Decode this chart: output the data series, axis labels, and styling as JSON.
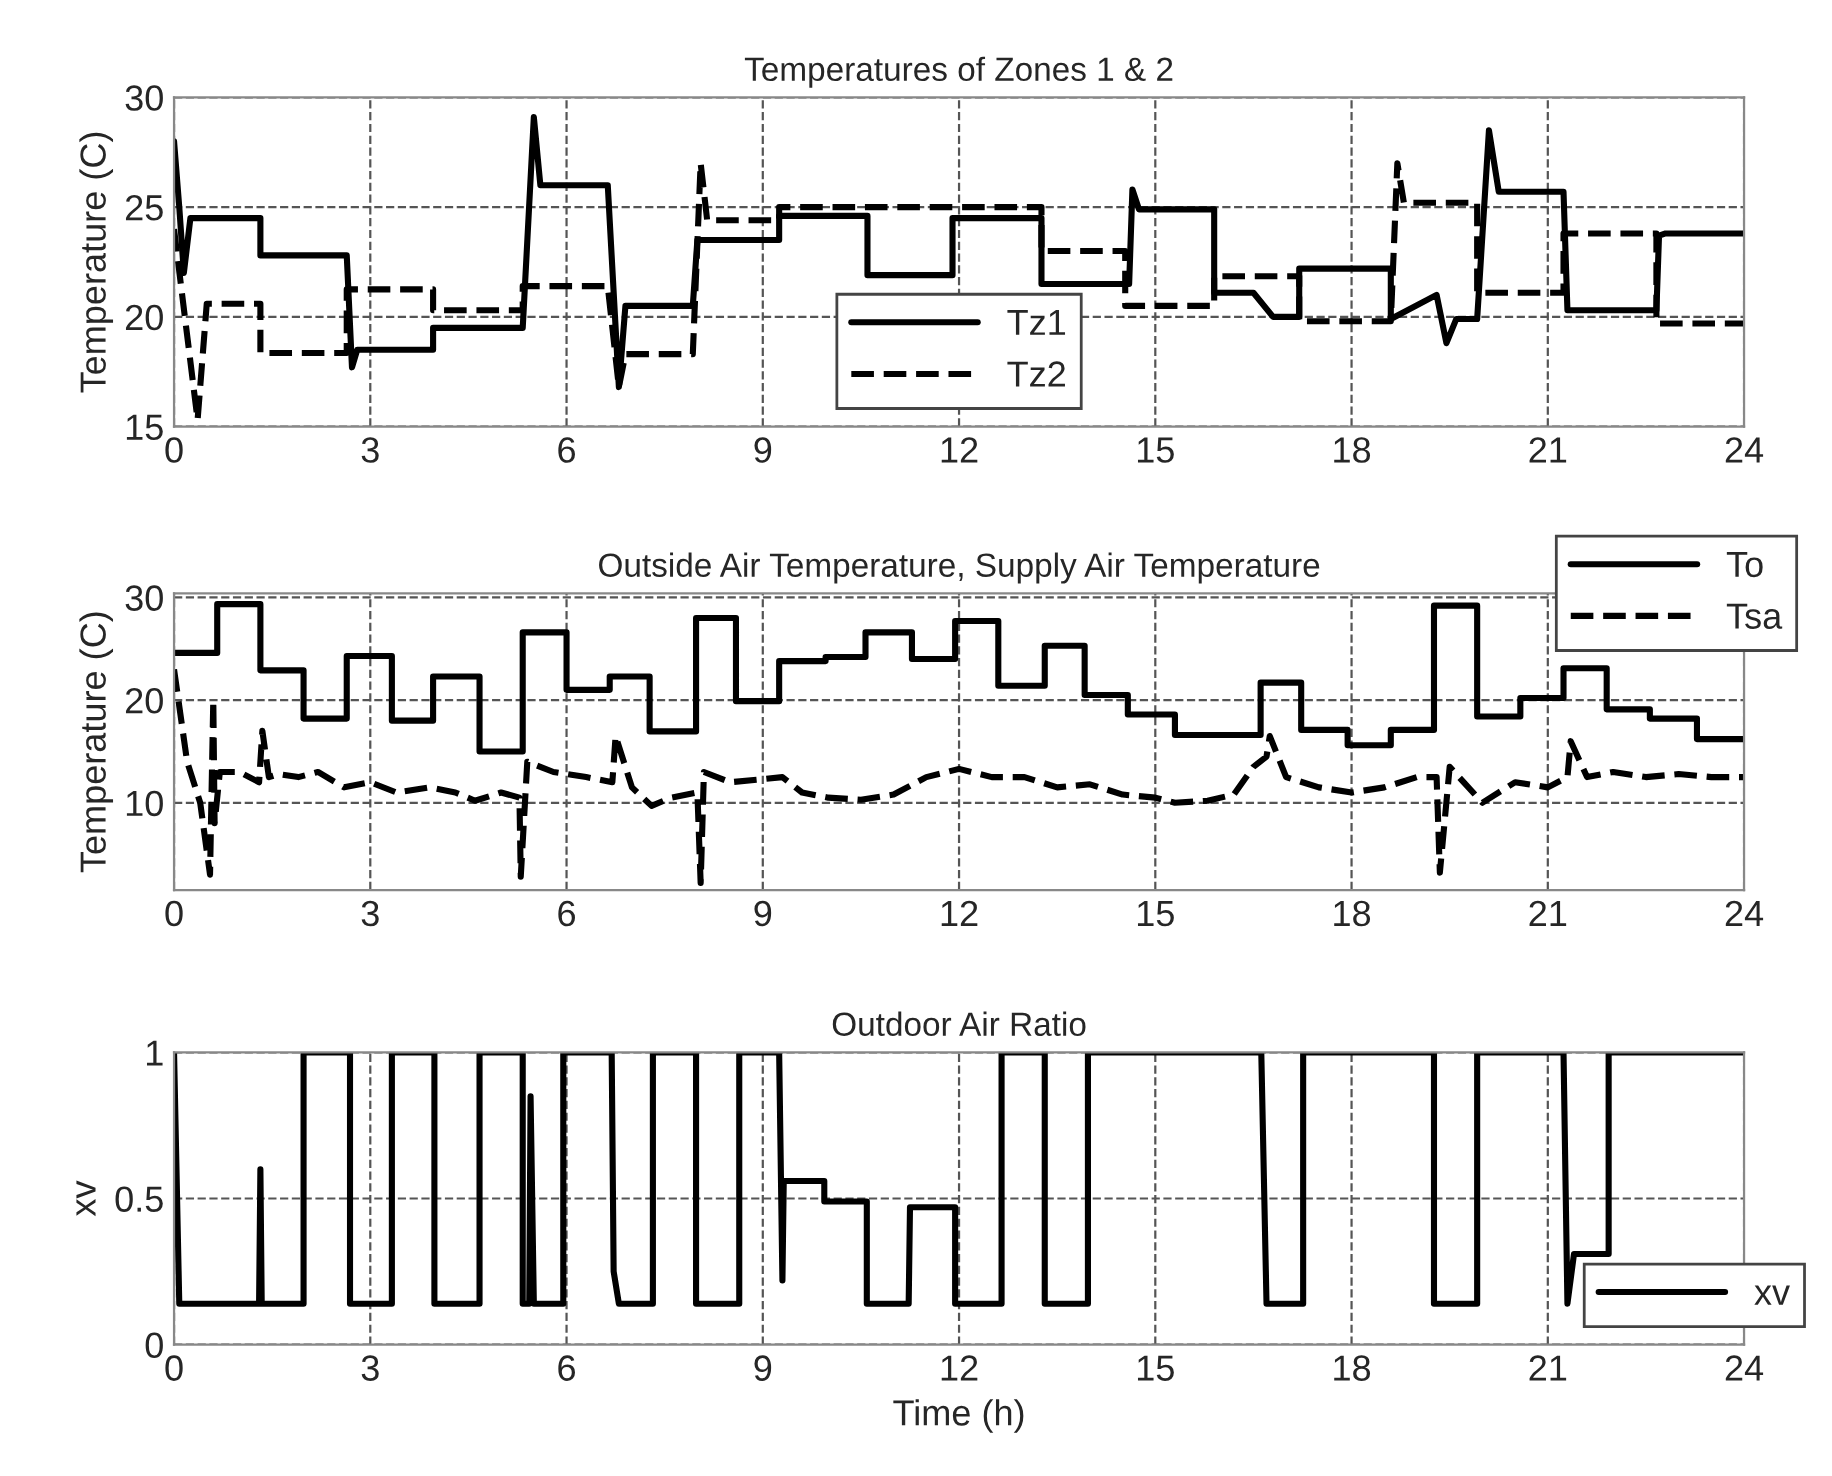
{
  "chart_data": [
    {
      "type": "line",
      "title": "Temperatures of Zones 1 & 2",
      "ylabel": "Temperature (C)",
      "xlim": [
        0,
        24
      ],
      "xticks": [
        0,
        3,
        6,
        9,
        12,
        15,
        18,
        21,
        24
      ],
      "ylim": [
        15,
        30
      ],
      "yticks": [
        15,
        20,
        25,
        30
      ],
      "grid": true,
      "legend": "bottom",
      "series": [
        {
          "name": "Tz1",
          "color": "#000000",
          "line_style": "solid",
          "x": [
            0,
            0.08,
            0.15,
            0.25,
            1.32,
            1.32,
            2.64,
            2.72,
            2.8,
            3.96,
            3.96,
            5.33,
            5.5,
            5.6,
            6.63,
            6.8,
            6.9,
            7.93,
            8.0,
            9.25,
            9.25,
            10.6,
            10.6,
            11.9,
            11.9,
            13.26,
            13.26,
            14.6,
            14.65,
            14.75,
            15.9,
            15.9,
            16.5,
            16.8,
            17.2,
            17.2,
            18.6,
            18.6,
            19.3,
            19.45,
            19.6,
            19.92,
            20.1,
            20.25,
            21.24,
            21.3,
            22.66,
            22.7,
            22.8,
            24
          ],
          "values": [
            28,
            25,
            22,
            24.5,
            24.5,
            22.8,
            22.8,
            17.7,
            18.5,
            18.5,
            19.5,
            19.5,
            29.1,
            26,
            26,
            16.8,
            20.5,
            20.5,
            23.5,
            23.5,
            24.6,
            24.6,
            21.9,
            21.9,
            24.5,
            24.5,
            21.5,
            21.5,
            25.8,
            24.9,
            24.9,
            21.1,
            21.1,
            20,
            20,
            22.2,
            22.2,
            19.9,
            21,
            18.8,
            19.9,
            19.9,
            28.5,
            25.7,
            25.7,
            20.3,
            20.3,
            23.7,
            23.8,
            23.8
          ]
        },
        {
          "name": "Tz2",
          "color": "#000000",
          "line_style": "dashed",
          "x": [
            0,
            0.36,
            0.5,
            1.32,
            1.32,
            2.64,
            2.64,
            3.96,
            3.96,
            5.33,
            5.33,
            6.63,
            6.8,
            6.9,
            7.93,
            8.05,
            8.15,
            9.25,
            9.25,
            13.26,
            13.26,
            14.54,
            14.54,
            15.9,
            15.9,
            17.2,
            17.2,
            18.6,
            18.7,
            18.8,
            19.92,
            19.92,
            21.24,
            21.24,
            22.66,
            22.66,
            24
          ],
          "values": [
            24,
            15.3,
            20.6,
            20.6,
            18.35,
            18.35,
            21.25,
            21.25,
            20.3,
            20.3,
            21.4,
            21.4,
            16.8,
            18.3,
            18.3,
            27,
            24.4,
            24.4,
            25,
            25,
            23,
            23,
            20.5,
            20.5,
            21.85,
            21.85,
            19.8,
            19.8,
            27,
            25.2,
            25.2,
            21.1,
            21.1,
            23.8,
            23.8,
            19.7,
            19.7
          ]
        }
      ]
    },
    {
      "type": "line",
      "title": "Outside Air Temperature, Supply Air Temperature",
      "ylabel": "Temperature (C)",
      "xlim": [
        0,
        24
      ],
      "xticks": [
        0,
        3,
        6,
        9,
        12,
        15,
        18,
        21,
        24
      ],
      "ylim": [
        1.5,
        30.4
      ],
      "yticks": [
        10,
        20,
        30
      ],
      "grid": true,
      "legend": "top right",
      "series": [
        {
          "name": "To",
          "color": "#000000",
          "line_style": "solid",
          "x": [
            0,
            0.66,
            0.66,
            1.32,
            1.32,
            1.98,
            1.98,
            2.64,
            2.64,
            3.33,
            3.33,
            3.96,
            3.96,
            4.67,
            4.67,
            5.33,
            5.33,
            6.0,
            6.0,
            6.66,
            6.66,
            7.27,
            7.27,
            7.98,
            7.98,
            8.59,
            8.59,
            9.25,
            9.25,
            9.96,
            9.96,
            10.57,
            10.57,
            11.28,
            11.28,
            11.94,
            11.94,
            12.6,
            12.6,
            13.31,
            13.31,
            13.92,
            13.92,
            14.58,
            14.58,
            15.3,
            15.3,
            16.61,
            16.61,
            17.23,
            17.23,
            17.94,
            17.94,
            18.6,
            18.6,
            19.26,
            19.26,
            19.92,
            19.92,
            20.58,
            20.58,
            21.24,
            21.24,
            21.9,
            21.9,
            22.56,
            22.56,
            23.28,
            23.28,
            24
          ],
          "values": [
            24.6,
            24.6,
            29.35,
            29.35,
            22.9,
            22.9,
            18.2,
            18.2,
            24.3,
            24.3,
            18,
            18,
            22.3,
            22.3,
            15,
            15,
            26.6,
            26.6,
            21,
            21,
            22.3,
            22.3,
            16.95,
            16.95,
            28,
            28,
            19.9,
            19.9,
            23.8,
            23.8,
            24.2,
            24.2,
            26.6,
            26.6,
            24,
            24,
            27.7,
            27.7,
            21.4,
            21.4,
            25.3,
            25.3,
            20.5,
            20.5,
            18.6,
            18.6,
            16.6,
            16.6,
            21.7,
            21.7,
            17.1,
            17.1,
            15.6,
            15.6,
            17.1,
            17.1,
            29.2,
            29.2,
            18.4,
            18.4,
            20.2,
            20.2,
            23.1,
            23.1,
            19.1,
            19.1,
            18.2,
            18.2,
            16.2,
            16.2
          ]
        },
        {
          "name": "Tsa",
          "color": "#000000",
          "line_style": "dashed",
          "x": [
            0,
            0.2,
            0.4,
            0.55,
            0.6,
            0.62,
            0.7,
            1.0,
            1.3,
            1.35,
            1.45,
            1.6,
            1.9,
            2.2,
            2.6,
            3.0,
            3.4,
            3.9,
            4.3,
            4.6,
            5.0,
            5.28,
            5.3,
            5.4,
            5.8,
            6.3,
            6.7,
            6.75,
            7.0,
            7.3,
            7.6,
            8.0,
            8.05,
            8.1,
            8.5,
            9.0,
            9.3,
            9.6,
            10.0,
            10.5,
            11.0,
            11.5,
            12.0,
            12.5,
            13.0,
            13.5,
            14.0,
            14.5,
            15.0,
            15.3,
            15.8,
            16.2,
            16.5,
            16.7,
            16.75,
            17.0,
            17.5,
            18.0,
            18.5,
            19.0,
            19.3,
            19.35,
            19.5,
            20.0,
            20.5,
            21.0,
            21.3,
            21.35,
            21.6,
            22.0,
            22.5,
            23.0,
            23.5,
            24
          ],
          "values": [
            23,
            14,
            10,
            3,
            20,
            8,
            13,
            13,
            12,
            17,
            12.5,
            12.8,
            12.5,
            13,
            11.5,
            12,
            11,
            11.5,
            11,
            10.2,
            11,
            10.5,
            2.8,
            14,
            13,
            12.5,
            12,
            16.5,
            11.5,
            9.7,
            10.5,
            11,
            2.2,
            13,
            12,
            12.3,
            12.5,
            11,
            10.5,
            10.3,
            10.8,
            12.5,
            13.3,
            12.5,
            12.5,
            11.5,
            11.8,
            10.8,
            10.5,
            10,
            10.2,
            10.8,
            13.5,
            14.5,
            16.5,
            12.5,
            11.5,
            11,
            11.5,
            12.5,
            12.5,
            3.2,
            13.5,
            10,
            12,
            11.5,
            12.5,
            16,
            12.5,
            13,
            12.5,
            12.8,
            12.5,
            12.5
          ]
        }
      ]
    },
    {
      "type": "line",
      "title": "Outdoor Air Ratio",
      "xlabel": "Time (h)",
      "ylabel": "xv",
      "xlim": [
        0,
        24
      ],
      "xticks": [
        0,
        3,
        6,
        9,
        12,
        15,
        18,
        21,
        24
      ],
      "ylim": [
        0,
        1
      ],
      "yticks": [
        0,
        0.5,
        1
      ],
      "grid": true,
      "legend": "bottom right",
      "series": [
        {
          "name": "xv",
          "color": "#000000",
          "line_style": "solid",
          "x": [
            0,
            0.08,
            1.3,
            1.32,
            1.34,
            1.98,
            1.98,
            2.69,
            2.69,
            3.33,
            3.33,
            3.98,
            3.98,
            4.67,
            4.67,
            5.33,
            5.33,
            5.43,
            5.45,
            5.5,
            5.95,
            5.95,
            6.69,
            6.72,
            6.8,
            7.32,
            7.32,
            7.98,
            7.98,
            8.64,
            8.64,
            9.25,
            9.3,
            9.32,
            9.94,
            9.94,
            10.59,
            10.59,
            11.23,
            11.25,
            11.94,
            11.94,
            12.65,
            12.65,
            13.31,
            13.31,
            13.97,
            13.97,
            16.62,
            16.7,
            17.26,
            17.26,
            19.26,
            19.26,
            19.92,
            19.92,
            21.24,
            21.3,
            21.4,
            21.93,
            21.93,
            24
          ],
          "values": [
            1,
            0.14,
            0.14,
            0.6,
            0.14,
            0.14,
            1,
            1,
            0.14,
            0.14,
            1,
            1,
            0.14,
            0.14,
            1,
            1,
            0.14,
            0.14,
            0.85,
            0.14,
            0.14,
            1,
            1,
            0.25,
            0.14,
            0.14,
            1,
            1,
            0.14,
            0.14,
            1,
            1,
            0.22,
            0.56,
            0.56,
            0.49,
            0.49,
            0.14,
            0.14,
            0.47,
            0.47,
            0.14,
            0.14,
            1,
            1,
            0.14,
            0.14,
            1,
            1,
            0.14,
            0.14,
            1,
            1,
            0.14,
            0.14,
            1,
            1,
            0.14,
            0.31,
            0.31,
            1,
            1
          ]
        }
      ]
    }
  ]
}
